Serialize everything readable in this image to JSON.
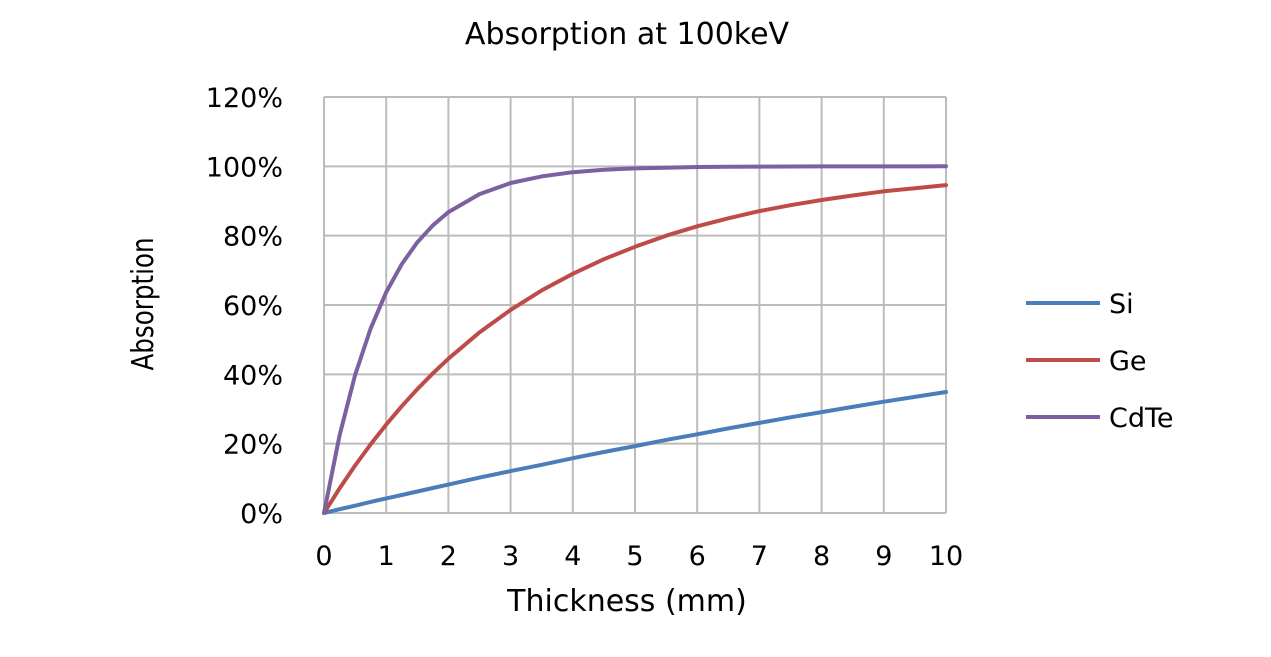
{
  "chart_data": {
    "type": "line",
    "title": "Absorption at 100keV",
    "xlabel": "Thickness (mm)",
    "ylabel": "Absorption",
    "x_ticks": [
      "0",
      "1",
      "2",
      "3",
      "4",
      "5",
      "6",
      "7",
      "8",
      "9",
      "10"
    ],
    "y_ticks": [
      "0%",
      "20%",
      "40%",
      "60%",
      "80%",
      "100%",
      "120%"
    ],
    "xlim": [
      0,
      10
    ],
    "ylim": [
      0,
      1.2
    ],
    "grid": true,
    "legend_position": "right",
    "x": [
      0,
      0.25,
      0.5,
      0.75,
      1,
      1.25,
      1.5,
      1.75,
      2,
      2.5,
      3,
      3.5,
      4,
      4.5,
      5,
      5.5,
      6,
      6.5,
      7,
      7.5,
      8,
      8.5,
      9,
      9.5,
      10
    ],
    "series": [
      {
        "name": "Si",
        "color": "#4a7ebb",
        "values": [
          0,
          0.011,
          0.021,
          0.032,
          0.042,
          0.052,
          0.062,
          0.072,
          0.082,
          0.102,
          0.121,
          0.139,
          0.158,
          0.176,
          0.193,
          0.211,
          0.227,
          0.244,
          0.26,
          0.276,
          0.291,
          0.306,
          0.321,
          0.335,
          0.349
        ]
      },
      {
        "name": "Ge",
        "color": "#be4b48",
        "values": [
          0,
          0.071,
          0.137,
          0.198,
          0.255,
          0.308,
          0.357,
          0.403,
          0.445,
          0.521,
          0.586,
          0.642,
          0.69,
          0.732,
          0.768,
          0.8,
          0.827,
          0.85,
          0.871,
          0.888,
          0.903,
          0.916,
          0.928,
          0.937,
          0.946
        ]
      },
      {
        "name": "CdTe",
        "color": "#7d60a0",
        "values": [
          0,
          0.224,
          0.398,
          0.532,
          0.637,
          0.718,
          0.781,
          0.83,
          0.868,
          0.92,
          0.952,
          0.971,
          0.983,
          0.99,
          0.994,
          0.996,
          0.998,
          0.9987,
          0.9992,
          0.9995,
          0.9997,
          0.9998,
          0.9999,
          0.99995,
          1.0
        ]
      }
    ]
  }
}
